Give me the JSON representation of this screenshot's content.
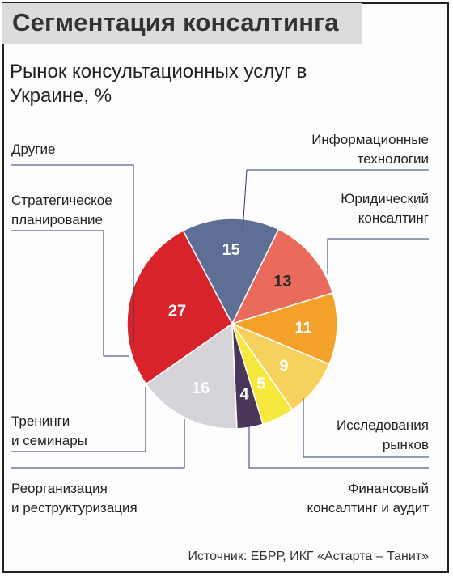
{
  "chart_data": {
    "type": "pie",
    "title": "Сегментация консалтинга",
    "subtitle": "Рынок консультационных услуг в Украине, %",
    "source": "Источник: ЕБРР, ИКГ «Астарта – Танит»",
    "slices": [
      {
        "label": "Информационные технологии",
        "label_lines": [
          "Информационные",
          "технологии"
        ],
        "value": 27,
        "color": "#d8232a",
        "value_color": "#ffffff"
      },
      {
        "label": "Юридический консалтинг",
        "label_lines": [
          "Юридический",
          "консалтинг"
        ],
        "value": 15,
        "color": "#5e6f96",
        "value_color": "#ffffff"
      },
      {
        "label": "Исследования рынков",
        "label_lines": [
          "Исследования",
          "рынков"
        ],
        "value": 13,
        "color": "#ea6a5b",
        "value_color": "#2a2a2a"
      },
      {
        "label": "Финансовый консалтинг и аудит",
        "label_lines": [
          "Финансовый",
          "консалтинг и аудит"
        ],
        "value": 11,
        "color": "#f4a12a",
        "value_color": "#ffffff"
      },
      {
        "label": "Реорганизация и реструктуризация",
        "label_lines": [
          "Реорганизация",
          "и реструктуризация"
        ],
        "value": 9,
        "color": "#f7d15e",
        "value_color": "#ffffff"
      },
      {
        "label": "Тренинги и семинары",
        "label_lines": [
          "Тренинги",
          "и семинары"
        ],
        "value": 5,
        "color": "#f6e83c",
        "value_color": "#ffffff"
      },
      {
        "label": "Другие",
        "label_lines": [
          "Другие"
        ],
        "value": 4,
        "color": "#4a3658",
        "value_color": "#ffffff"
      },
      {
        "label": "Стратегическое планирование",
        "label_lines": [
          "Стратегическое",
          "планирование"
        ],
        "value": 16,
        "color": "#d7d4d9",
        "value_color": "#ffffff"
      }
    ]
  }
}
